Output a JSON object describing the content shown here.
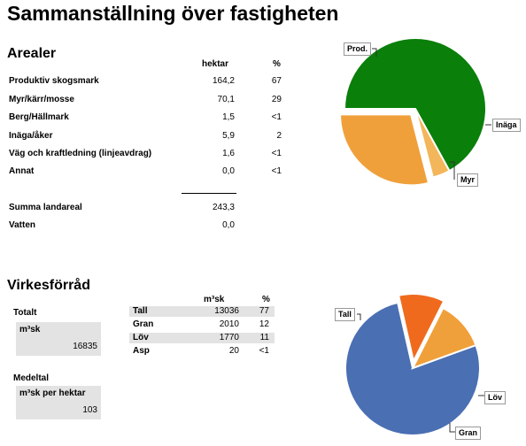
{
  "title": "Sammanställning över fastigheten",
  "arealer": {
    "heading": "Arealer",
    "col_hektar": "hektar",
    "col_pct": "%",
    "rows": [
      {
        "label": "Produktiv skogsmark",
        "ha": "164,2",
        "pct": "67"
      },
      {
        "label": "Myr/kärr/mosse",
        "ha": "70,1",
        "pct": "29"
      },
      {
        "label": "Berg/Hällmark",
        "ha": "1,5",
        "pct": "<1"
      },
      {
        "label": "Inäga/åker",
        "ha": "5,9",
        "pct": "2"
      },
      {
        "label": "Väg och kraftledning (linjeavdrag)",
        "ha": "1,6",
        "pct": "<1"
      },
      {
        "label": "Annat",
        "ha": "0,0",
        "pct": "<1"
      }
    ],
    "summa_label": "Summa landareal",
    "summa_value": "243,3",
    "vatten_label": "Vatten",
    "vatten_value": "0,0"
  },
  "virke": {
    "heading": "Virkesförråd",
    "totalt_label": "Totalt",
    "m3sk_label": "m³sk",
    "totalt_value": "16835",
    "medeltal_label": "Medeltal",
    "per_hektar_label": "m³sk per hektar",
    "per_hektar_value": "103",
    "col_m3sk": "m³sk",
    "col_pct": "%",
    "rows": [
      {
        "label": "Tall",
        "m3sk": "13036",
        "pct": "77"
      },
      {
        "label": "Gran",
        "m3sk": "2010",
        "pct": "12"
      },
      {
        "label": "Löv",
        "m3sk": "1770",
        "pct": "11"
      },
      {
        "label": "Asp",
        "m3sk": "20",
        "pct": "<1"
      }
    ]
  },
  "chart_data": [
    {
      "type": "pie",
      "slices": [
        {
          "label": "Prod.",
          "value": 67,
          "color": "#0a7f0a"
        },
        {
          "label": "Inäga",
          "value": 4,
          "color": "#f3b65a"
        },
        {
          "label": "Myr",
          "value": 29,
          "color": "#f0a03a"
        }
      ],
      "exploded": "Myr"
    },
    {
      "type": "pie",
      "slices": [
        {
          "label": "Tall",
          "value": 77,
          "color": "#4a6fb3"
        },
        {
          "label": "Löv",
          "value": 11,
          "color": "#f06a1e"
        },
        {
          "label": "Gran",
          "value": 12,
          "color": "#f0a03a"
        }
      ],
      "exploded": "Löv"
    }
  ]
}
